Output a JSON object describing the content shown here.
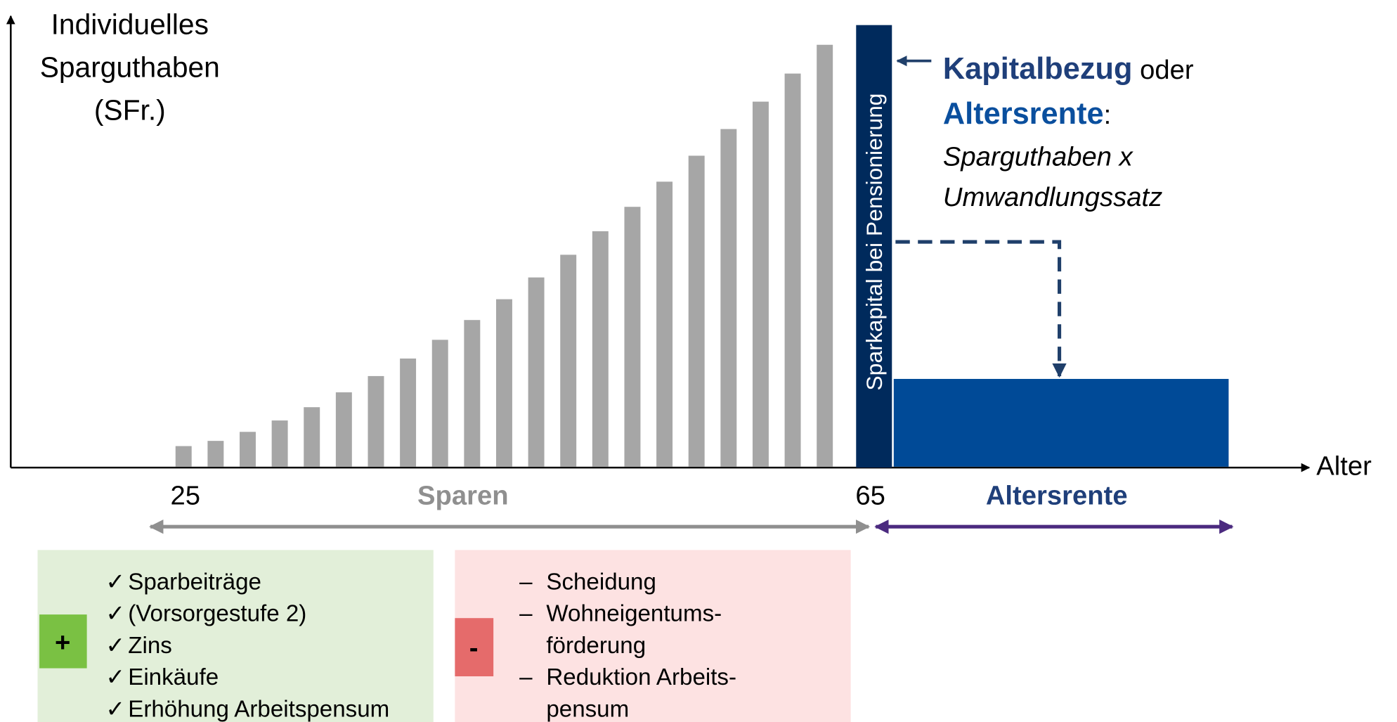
{
  "y_axis_label": [
    "Individuelles",
    "Sparguthaben",
    "(SFr.)"
  ],
  "x_axis_label": "Alter",
  "capital_bar_label": "Sparkapital bei Pensionierung",
  "callout": {
    "term1": "Kapitalbezug",
    "connector": " oder",
    "term2": "Altersrente",
    "colon": ":",
    "formula": [
      "Sparguthaben x",
      "Umwandlungssatz"
    ]
  },
  "ages": {
    "start": "25",
    "retirement": "65"
  },
  "phases": {
    "saving": "Sparen",
    "pension": "Altersrente"
  },
  "plus_box": {
    "symbol": "+",
    "marker": "✓",
    "items": [
      "Sparbeiträge",
      "(Vorsorgestufe 2)",
      "Zins",
      "Einkäufe",
      "Erhöhung Arbeitspensum"
    ]
  },
  "minus_box": {
    "symbol": "-",
    "marker": "–",
    "items": [
      [
        "Scheidung"
      ],
      [
        "Wohneigentums-",
        "förderung"
      ],
      [
        "Reduktion Arbeits-",
        "pensum"
      ]
    ]
  }
}
